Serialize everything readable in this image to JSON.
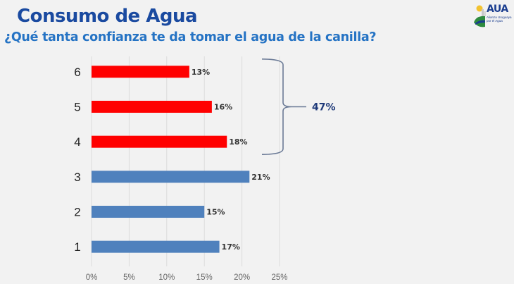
{
  "header": {
    "title": "Consumo de Agua",
    "subtitle": "¿Qué tanta confianza te da tomar el agua de la canilla?"
  },
  "logo": {
    "name": "AUA",
    "tagline": "Alianza Uruguaya por el Agua"
  },
  "chart_data": {
    "type": "bar",
    "orientation": "horizontal",
    "title": "¿Qué tanta confianza te da tomar el agua de la canilla?",
    "categories": [
      "6",
      "5",
      "4",
      "3",
      "2",
      "1"
    ],
    "values": [
      13,
      16,
      18,
      21,
      15,
      17
    ],
    "value_labels": [
      "13%",
      "16%",
      "18%",
      "21%",
      "15%",
      "17%"
    ],
    "bar_colors": [
      "#ff0000",
      "#ff0000",
      "#ff0000",
      "#4f81bd",
      "#4f81bd",
      "#4f81bd"
    ],
    "xlim": [
      0,
      25
    ],
    "x_ticks": [
      0,
      5,
      10,
      15,
      20,
      25
    ],
    "x_tick_labels": [
      "0%",
      "5%",
      "10%",
      "15%",
      "20%",
      "25%"
    ],
    "xlabel": "",
    "ylabel": "",
    "grid": true,
    "annotation": {
      "type": "brace",
      "groups": [
        "6",
        "5",
        "4"
      ],
      "label": "47%",
      "color": "#1f3a7a"
    }
  }
}
